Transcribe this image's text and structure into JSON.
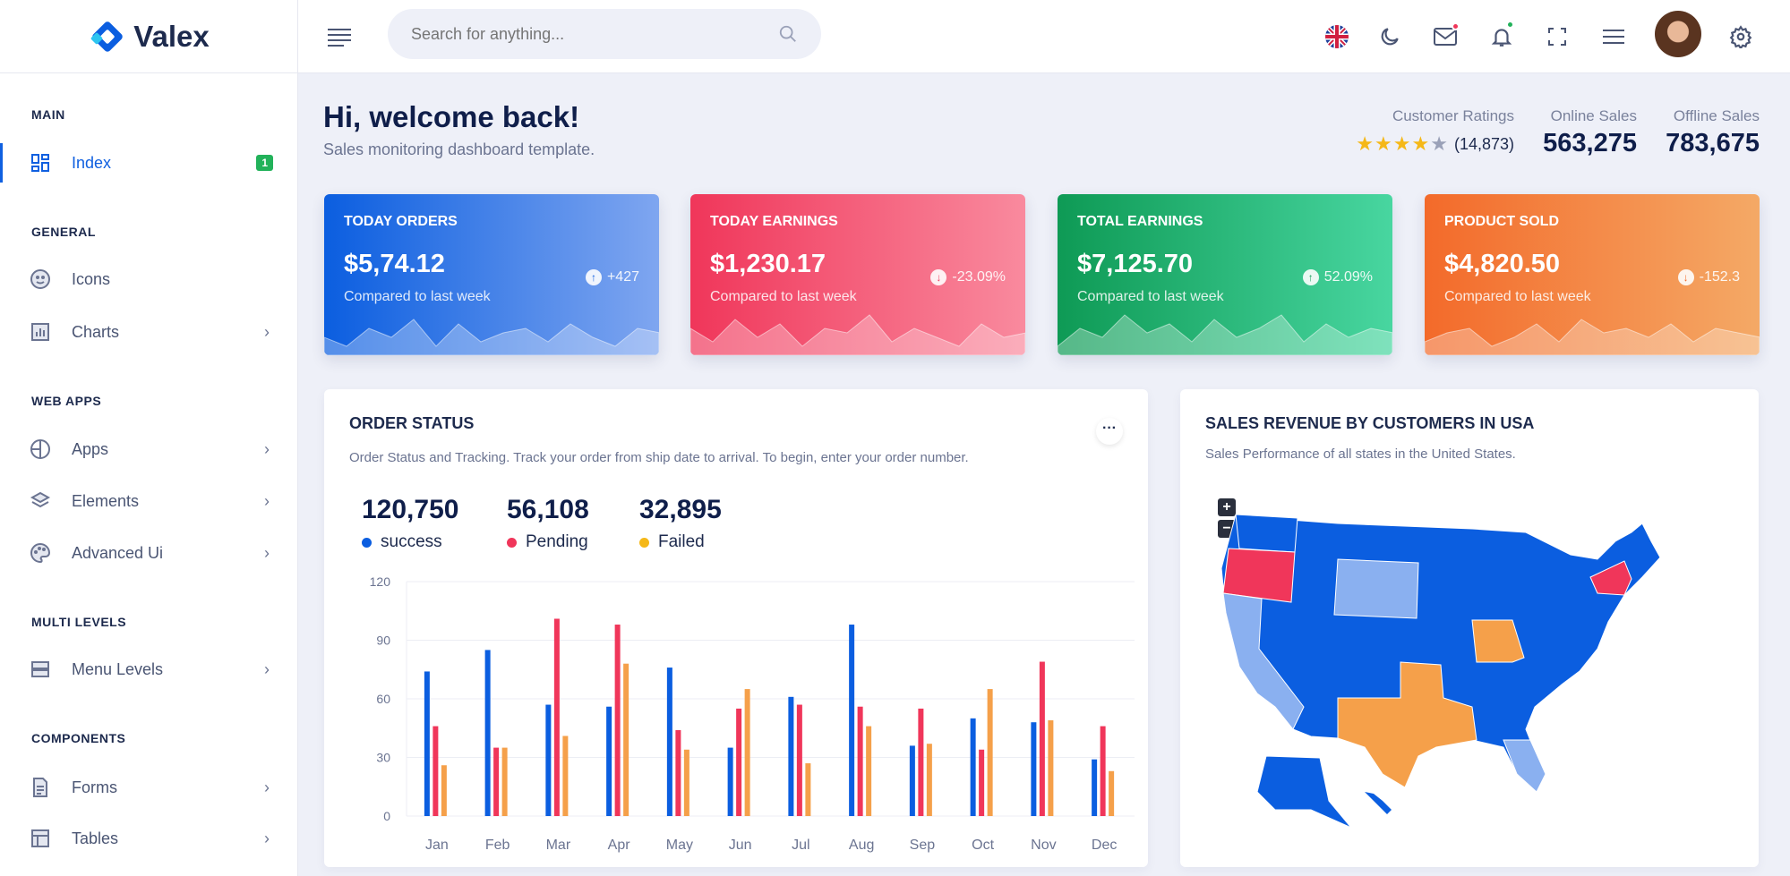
{
  "brand": {
    "name": "Valex"
  },
  "search": {
    "placeholder": "Search for anything..."
  },
  "sidebar": {
    "sections": [
      "MAIN",
      "GENERAL",
      "WEB APPS",
      "MULTI LEVELS",
      "COMPONENTS"
    ],
    "items": [
      {
        "label": "Index",
        "badge": "1"
      },
      {
        "label": "Icons"
      },
      {
        "label": "Charts"
      },
      {
        "label": "Apps"
      },
      {
        "label": "Elements"
      },
      {
        "label": "Advanced Ui"
      },
      {
        "label": "Menu Levels"
      },
      {
        "label": "Forms"
      },
      {
        "label": "Tables"
      }
    ]
  },
  "welcome": {
    "title": "Hi, welcome back!",
    "subtitle": "Sales monitoring dashboard template."
  },
  "summary": {
    "ratings_label": "Customer Ratings",
    "rating": 4,
    "rating_max": 5,
    "ratings_count": "(14,873)",
    "online_label": "Online Sales",
    "online_value": "563,275",
    "offline_label": "Offline Sales",
    "offline_value": "783,675"
  },
  "cards": [
    {
      "title": "TODAY ORDERS",
      "value": "$5,74.12",
      "sub": "Compared to last week",
      "change": "+427",
      "dir": "up"
    },
    {
      "title": "TODAY EARNINGS",
      "value": "$1,230.17",
      "sub": "Compared to last week",
      "change": "-23.09%",
      "dir": "down"
    },
    {
      "title": "TOTAL EARNINGS",
      "value": "$7,125.70",
      "sub": "Compared to last week",
      "change": "52.09%",
      "dir": "up"
    },
    {
      "title": "PRODUCT SOLD",
      "value": "$4,820.50",
      "sub": "Compared to last week",
      "change": "-152.3",
      "dir": "down"
    }
  ],
  "order_status": {
    "title": "ORDER STATUS",
    "subtitle": "Order Status and Tracking. Track your order from ship date to arrival. To begin, enter your order number.",
    "stats": [
      {
        "value": "120,750",
        "label": "success",
        "color": "#0b5ee0"
      },
      {
        "value": "56,108",
        "label": "Pending",
        "color": "#f0365a"
      },
      {
        "value": "32,895",
        "label": "Failed",
        "color": "#f5b818"
      }
    ]
  },
  "map_panel": {
    "title": "SALES REVENUE BY CUSTOMERS IN USA",
    "subtitle": "Sales Performance of all states in the United States.",
    "zoom_in": "+",
    "zoom_out": "−"
  },
  "chart_data": {
    "type": "bar",
    "categories": [
      "Jan",
      "Feb",
      "Mar",
      "Apr",
      "May",
      "Jun",
      "Jul",
      "Aug",
      "Sep",
      "Oct",
      "Nov",
      "Dec"
    ],
    "series": [
      {
        "name": "success",
        "color": "#0b5ee0",
        "values": [
          74,
          85,
          57,
          56,
          76,
          35,
          61,
          98,
          36,
          50,
          48,
          29
        ]
      },
      {
        "name": "Pending",
        "color": "#f0365a",
        "values": [
          46,
          35,
          101,
          98,
          44,
          55,
          57,
          56,
          55,
          34,
          79,
          46
        ]
      },
      {
        "name": "Failed",
        "color": "#f5a04a",
        "values": [
          26,
          35,
          41,
          78,
          34,
          65,
          27,
          46,
          37,
          65,
          49,
          23
        ]
      }
    ],
    "yticks": [
      "0",
      "30",
      "60",
      "90",
      "120"
    ],
    "ylim": [
      0,
      120
    ],
    "grid": true
  }
}
